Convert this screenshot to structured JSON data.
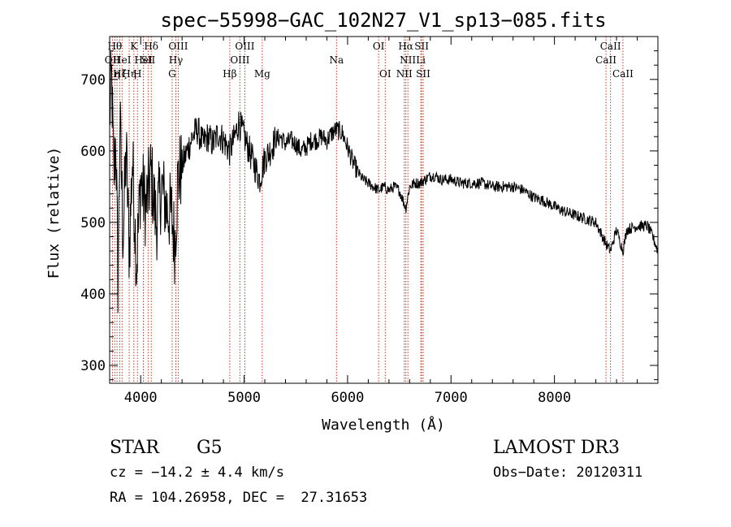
{
  "chart_data": {
    "type": "line",
    "title": "spec−55998−GAC_102N27_V1_sp13−085.fits",
    "xlabel": "Wavelength (Å)",
    "ylabel": "Flux (relative)",
    "xlim": [
      3700,
      9000
    ],
    "ylim": [
      275,
      760
    ],
    "xticks": [
      4000,
      5000,
      6000,
      7000,
      8000
    ],
    "yticks": [
      300,
      400,
      500,
      600,
      700
    ],
    "line_color": "#000000",
    "marker_color": "#c0392b",
    "series": [
      {
        "name": "spectrum",
        "anchors": [
          [
            3700,
            650
          ],
          [
            3720,
            700
          ],
          [
            3740,
            560
          ],
          [
            3760,
            620
          ],
          [
            3780,
            420
          ],
          [
            3800,
            640
          ],
          [
            3830,
            480
          ],
          [
            3860,
            600
          ],
          [
            3890,
            460
          ],
          [
            3920,
            590
          ],
          [
            3960,
            440
          ],
          [
            4000,
            560
          ],
          [
            4050,
            520
          ],
          [
            4100,
            570
          ],
          [
            4150,
            500
          ],
          [
            4200,
            550
          ],
          [
            4250,
            520
          ],
          [
            4300,
            510
          ],
          [
            4330,
            470
          ],
          [
            4360,
            560
          ],
          [
            4400,
            580
          ],
          [
            4450,
            600
          ],
          [
            4500,
            620
          ],
          [
            4550,
            630
          ],
          [
            4600,
            610
          ],
          [
            4650,
            620
          ],
          [
            4700,
            610
          ],
          [
            4750,
            625
          ],
          [
            4800,
            615
          ],
          [
            4860,
            600
          ],
          [
            4900,
            615
          ],
          [
            4950,
            640
          ],
          [
            5000,
            620
          ],
          [
            5050,
            600
          ],
          [
            5100,
            580
          ],
          [
            5150,
            560
          ],
          [
            5200,
            590
          ],
          [
            5250,
            600
          ],
          [
            5300,
            615
          ],
          [
            5350,
            620
          ],
          [
            5400,
            610
          ],
          [
            5450,
            615
          ],
          [
            5500,
            610
          ],
          [
            5550,
            600
          ],
          [
            5600,
            605
          ],
          [
            5650,
            615
          ],
          [
            5700,
            615
          ],
          [
            5750,
            620
          ],
          [
            5800,
            615
          ],
          [
            5850,
            625
          ],
          [
            5893,
            630
          ],
          [
            5950,
            625
          ],
          [
            6000,
            605
          ],
          [
            6050,
            585
          ],
          [
            6100,
            570
          ],
          [
            6150,
            560
          ],
          [
            6200,
            555
          ],
          [
            6250,
            550
          ],
          [
            6300,
            545
          ],
          [
            6350,
            550
          ],
          [
            6400,
            545
          ],
          [
            6450,
            550
          ],
          [
            6500,
            545
          ],
          [
            6563,
            520
          ],
          [
            6600,
            550
          ],
          [
            6650,
            555
          ],
          [
            6700,
            555
          ],
          [
            6750,
            560
          ],
          [
            6800,
            565
          ],
          [
            6850,
            565
          ],
          [
            6900,
            560
          ],
          [
            6950,
            560
          ],
          [
            7000,
            560
          ],
          [
            7100,
            555
          ],
          [
            7200,
            555
          ],
          [
            7300,
            555
          ],
          [
            7400,
            550
          ],
          [
            7500,
            550
          ],
          [
            7600,
            550
          ],
          [
            7700,
            545
          ],
          [
            7800,
            535
          ],
          [
            7900,
            530
          ],
          [
            8000,
            522
          ],
          [
            8100,
            515
          ],
          [
            8200,
            510
          ],
          [
            8300,
            505
          ],
          [
            8400,
            500
          ],
          [
            8498,
            470
          ],
          [
            8542,
            460
          ],
          [
            8600,
            490
          ],
          [
            8662,
            460
          ],
          [
            8700,
            490
          ],
          [
            8800,
            495
          ],
          [
            8900,
            495
          ],
          [
            8950,
            480
          ],
          [
            9000,
            460
          ]
        ]
      }
    ],
    "lines": [
      {
        "w": 3727,
        "label": "OII",
        "row": 1
      },
      {
        "w": 3750,
        "label": "Hθ",
        "row": 0
      },
      {
        "w": 3771,
        "label": "η",
        "row": 2
      },
      {
        "w": 3798,
        "label": "Hζ",
        "row": 2
      },
      {
        "w": 3820,
        "label": "HeI",
        "row": 1
      },
      {
        "w": 3889,
        "label": "Hη",
        "row": 2
      },
      {
        "w": 3934,
        "label": "K",
        "row": 0
      },
      {
        "w": 3969,
        "label": "H",
        "row": 2
      },
      {
        "w": 4026,
        "label": "HeI",
        "row": 1
      },
      {
        "w": 4072,
        "label": "SII",
        "row": 1
      },
      {
        "w": 4102,
        "label": "Hδ",
        "row": 0
      },
      {
        "w": 4304,
        "label": "G",
        "row": 2
      },
      {
        "w": 4340,
        "label": "Hγ",
        "row": 1
      },
      {
        "w": 4363,
        "label": "OIII",
        "row": 0
      },
      {
        "w": 4861,
        "label": "Hβ",
        "row": 2
      },
      {
        "w": 4959,
        "label": "OIII",
        "row": 1
      },
      {
        "w": 5007,
        "label": "OIII",
        "row": 0
      },
      {
        "w": 5175,
        "label": "Mg",
        "row": 2
      },
      {
        "w": 5893,
        "label": "Na",
        "row": 1
      },
      {
        "w": 6300,
        "label": "OI",
        "row": 0
      },
      {
        "w": 6364,
        "label": "OI",
        "row": 2
      },
      {
        "w": 6548,
        "label": "NII",
        "row": 2
      },
      {
        "w": 6563,
        "label": "Hα",
        "row": 0
      },
      {
        "w": 6583,
        "label": "NII",
        "row": 1
      },
      {
        "w": 6708,
        "label": "Li",
        "row": 1
      },
      {
        "w": 6716,
        "label": "SII",
        "row": 0
      },
      {
        "w": 6731,
        "label": "SII",
        "row": 2
      },
      {
        "w": 8498,
        "label": "CaII",
        "row": 1
      },
      {
        "w": 8542,
        "label": "CaII",
        "row": 0
      },
      {
        "w": 8662,
        "label": "CaII",
        "row": 2
      }
    ]
  },
  "info": {
    "object_class": "STAR",
    "subclass": "G5",
    "survey": "LAMOST DR3",
    "cz": "cz = −14.2 ± 4.4 km/s",
    "obs_date": "Obs−Date: 20120311",
    "coords": "RA = 104.26958, DEC =  27.31653"
  }
}
